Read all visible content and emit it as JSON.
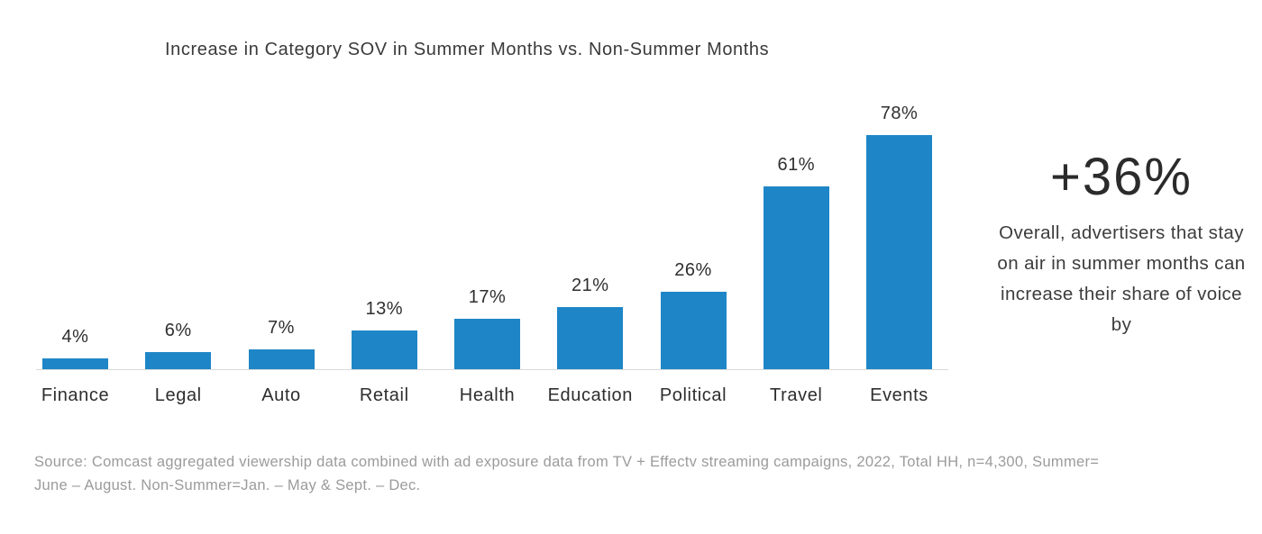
{
  "title": "Increase in Category SOV in Summer Months vs. Non-Summer Months",
  "chart_data": {
    "type": "bar",
    "title": "Increase in Category SOV in Summer Months vs. Non-Summer Months",
    "categories": [
      "Finance",
      "Legal",
      "Auto",
      "Retail",
      "Health",
      "Education",
      "Political",
      "Travel",
      "Events"
    ],
    "values": [
      4,
      6,
      7,
      13,
      17,
      21,
      26,
      61,
      78
    ],
    "value_labels": [
      "4%",
      "6%",
      "7%",
      "13%",
      "17%",
      "21%",
      "26%",
      "61%",
      "78%"
    ],
    "xlabel": "",
    "ylabel": "",
    "ylim": [
      0,
      80
    ],
    "grid": false,
    "legend": false,
    "data_labels": true,
    "bar_color": "#1E86C7",
    "axis_line_color": "#d9d9d9"
  },
  "callout": {
    "value": "+36%",
    "text": "Overall, advertisers that stay on air in summer months can increase their share of voice by"
  },
  "source": {
    "line1": "Source: Comcast aggregated viewership data combined with ad exposure data from TV + Effectv streaming campaigns, 2022, Total HH, n=4,300, Summer=",
    "line2": "June – August. Non-Summer=Jan. – May & Sept. – Dec."
  }
}
